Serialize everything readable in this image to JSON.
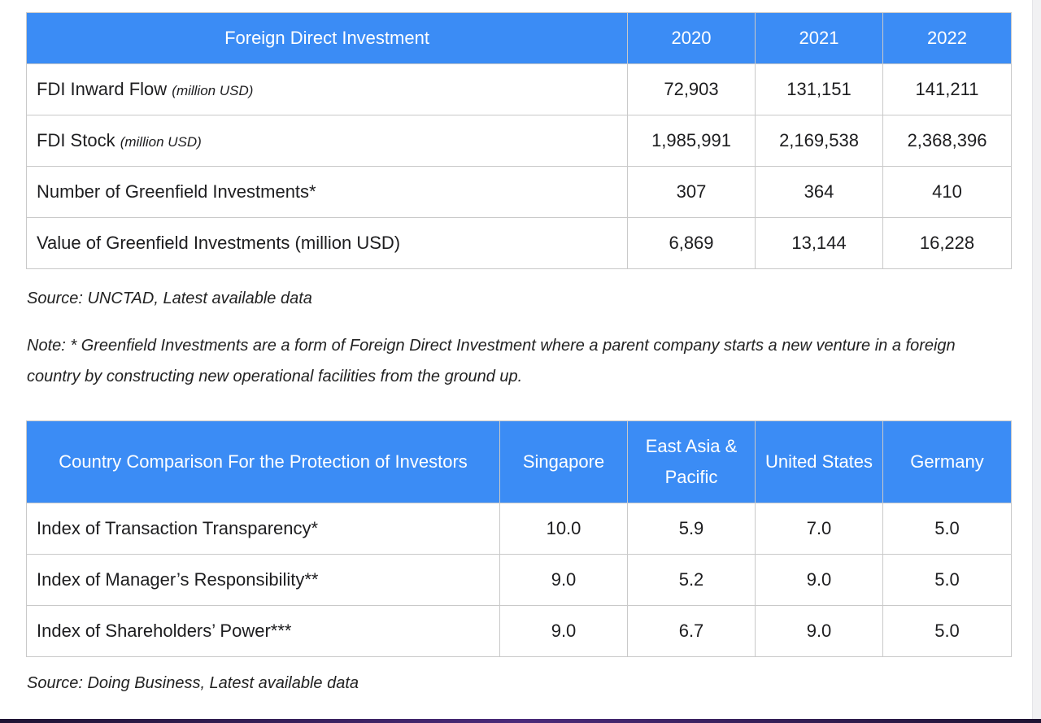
{
  "fdi_table": {
    "header": {
      "title": "Foreign Direct Investment",
      "years": [
        "2020",
        "2021",
        "2022"
      ]
    },
    "rows": [
      {
        "label": "FDI Inward Flow",
        "unit": "(million USD)",
        "values": [
          "72,903",
          "131,151",
          "141,211"
        ]
      },
      {
        "label": "FDI Stock",
        "unit": "(million USD)",
        "values": [
          "1,985,991",
          "2,169,538",
          "2,368,396"
        ]
      },
      {
        "label": "Number of Greenfield Investments*",
        "unit": "",
        "values": [
          "307",
          "364",
          "410"
        ]
      },
      {
        "label": "Value of Greenfield Investments (million USD)",
        "unit": "",
        "values": [
          "6,869",
          "13,144",
          "16,228"
        ]
      }
    ],
    "source": "Source: UNCTAD, Latest available data",
    "note": "Note: * Greenfield Investments are a form of Foreign Direct Investment where a parent company starts a new venture in a foreign country by constructing new operational facilities from the ground up."
  },
  "protection_table": {
    "header": {
      "title": "Country Comparison For the Protection of Investors",
      "columns": [
        "Singapore",
        "East Asia & Pacific",
        "United States",
        "Germany"
      ]
    },
    "rows": [
      {
        "label": "Index of Transaction Transparency*",
        "values": [
          "10.0",
          "5.9",
          "7.0",
          "5.0"
        ]
      },
      {
        "label": "Index of Manager’s Responsibility**",
        "values": [
          "9.0",
          "5.2",
          "9.0",
          "5.0"
        ]
      },
      {
        "label": "Index of Shareholders’ Power***",
        "values": [
          "9.0",
          "6.7",
          "9.0",
          "5.0"
        ]
      }
    ],
    "source": "Source: Doing Business, Latest available data"
  },
  "colors": {
    "header_blue": "#3b8cf5",
    "border_gray": "#c9c9c9"
  }
}
